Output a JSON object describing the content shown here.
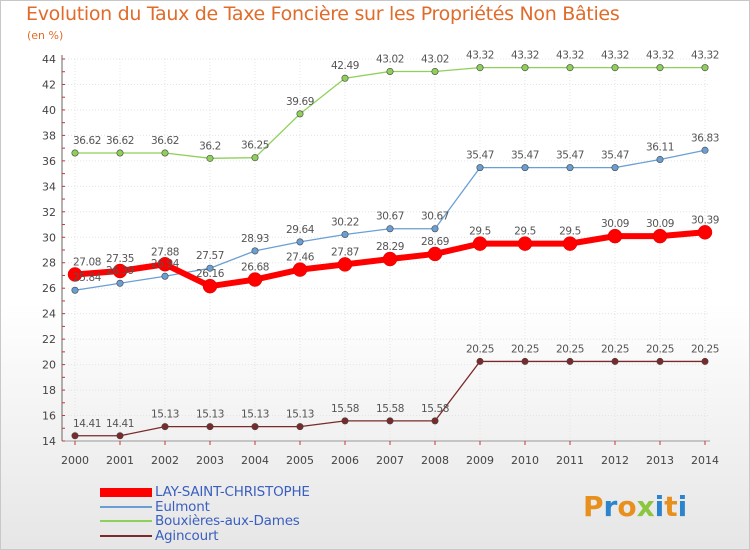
{
  "title": "Evolution du Taux de Taxe Foncière sur les Propriétés Non Bâties",
  "unit": "(en %)",
  "logo": {
    "letters": [
      "P",
      "r",
      "o",
      "x",
      "i",
      "t",
      "i"
    ],
    "colors": [
      "#e8901e",
      "#2c84cc",
      "#e8901e",
      "#8cc63f",
      "#2c84cc",
      "#e8901e",
      "#2c84cc"
    ]
  },
  "chart_data": {
    "type": "line",
    "x": [
      "2000",
      "2001",
      "2002",
      "2003",
      "2004",
      "2005",
      "2006",
      "2007",
      "2008",
      "2009",
      "2010",
      "2011",
      "2012",
      "2013",
      "2014"
    ],
    "ylim": [
      14,
      44
    ],
    "yticks": [
      "14",
      "16",
      "18",
      "20",
      "22",
      "24",
      "26",
      "28",
      "30",
      "32",
      "34",
      "36",
      "38",
      "40",
      "42",
      "44"
    ],
    "grid": true,
    "legend": "bottom-left",
    "series": [
      {
        "name": "Bouxières-aux-Dames",
        "color": "#8fd05a",
        "values": [
          36.62,
          36.62,
          36.62,
          36.2,
          36.25,
          39.69,
          42.49,
          43.02,
          43.02,
          43.32,
          43.32,
          43.32,
          43.32,
          43.32,
          43.32
        ],
        "labels": [
          "36.62",
          "36.62",
          "36.62",
          "36.2",
          "36.25",
          "39.69",
          "42.49",
          "43.02",
          "43.02",
          "43.32",
          "43.32",
          "43.32",
          "43.32",
          "43.32",
          "43.32"
        ]
      },
      {
        "name": "Eulmont",
        "color": "#6a9fd4",
        "values": [
          25.84,
          26.39,
          26.94,
          27.57,
          28.93,
          29.64,
          30.22,
          30.67,
          30.67,
          35.47,
          35.47,
          35.47,
          35.47,
          36.11,
          36.83
        ],
        "labels": [
          "25.84",
          "26.39",
          "26.94",
          "27.57",
          "28.93",
          "29.64",
          "30.22",
          "30.67",
          "30.67",
          "35.47",
          "35.47",
          "35.47",
          "35.47",
          "36.11",
          "36.83"
        ]
      },
      {
        "name": "Agincourt",
        "color": "#7a2a2a",
        "values": [
          14.41,
          14.41,
          15.13,
          15.13,
          15.13,
          15.13,
          15.58,
          15.58,
          15.58,
          20.25,
          20.25,
          20.25,
          20.25,
          20.25,
          20.25
        ],
        "labels": [
          "14.41",
          "14.41",
          "15.13",
          "15.13",
          "15.13",
          "15.13",
          "15.58",
          "15.58",
          "15.58",
          "20.25",
          "20.25",
          "20.25",
          "20.25",
          "20.25",
          "20.25"
        ]
      },
      {
        "name": "LAY-SAINT-CHRISTOPHE",
        "color": "#ff0000",
        "values": [
          27.08,
          27.35,
          27.88,
          26.16,
          26.68,
          27.46,
          27.87,
          28.29,
          28.69,
          29.5,
          29.5,
          29.5,
          30.09,
          30.09,
          30.39
        ],
        "labels": [
          "27.08",
          "27.35",
          "27.88",
          "26.16",
          "26.68",
          "27.46",
          "27.87",
          "28.29",
          "28.69",
          "29.5",
          "29.5",
          "29.5",
          "30.09",
          "30.09",
          "30.39"
        ]
      }
    ],
    "legend_order": [
      "LAY-SAINT-CHRISTOPHE",
      "Eulmont",
      "Bouxières-aux-Dames",
      "Agincourt"
    ]
  }
}
